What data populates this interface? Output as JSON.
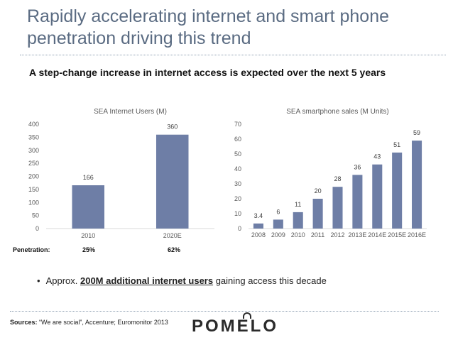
{
  "slide": {
    "title": "Rapidly accelerating internet and smart phone penetration driving this trend",
    "subtitle": "A step-change increase in internet access is expected over the next 5 years"
  },
  "chart_data": [
    {
      "type": "bar",
      "title": "SEA Internet Users (M)",
      "categories": [
        "2010",
        "2020E"
      ],
      "values": [
        166,
        360
      ],
      "data_labels": [
        "166",
        "360"
      ],
      "ylim": [
        0,
        400
      ],
      "yticks": [
        0,
        50,
        100,
        150,
        200,
        250,
        300,
        350,
        400
      ],
      "grid": false,
      "bar_color": "#6e7ea6"
    },
    {
      "type": "bar",
      "title": "SEA smartphone sales (M Units)",
      "categories": [
        "2008",
        "2009",
        "2010",
        "2011",
        "2012",
        "2013E",
        "2014E",
        "2015E",
        "2016E"
      ],
      "values": [
        3.4,
        6,
        11,
        20,
        28,
        36,
        43,
        51,
        59
      ],
      "data_labels": [
        "3.4",
        "6",
        "11",
        "20",
        "28",
        "36",
        "43",
        "51",
        "59"
      ],
      "ylim": [
        0,
        70
      ],
      "yticks": [
        0,
        10,
        20,
        30,
        40,
        50,
        60,
        70
      ],
      "grid": false,
      "bar_color": "#6e7ea6"
    }
  ],
  "penetration": {
    "label": "Penetration:",
    "values": [
      "25%",
      "62%"
    ]
  },
  "bullet": {
    "prefix": "Approx. ",
    "emphasis": "200M additional internet users",
    "suffix": " gaining access this decade"
  },
  "sources": {
    "label": "Sources:",
    "text": " “We are social”, Accenture; Euromonitor 2013"
  },
  "logo": {
    "text": "POMELO"
  },
  "colors": {
    "title": "#5a6b82",
    "bar": "#6e7ea6",
    "axis": "#d9d9d9"
  }
}
